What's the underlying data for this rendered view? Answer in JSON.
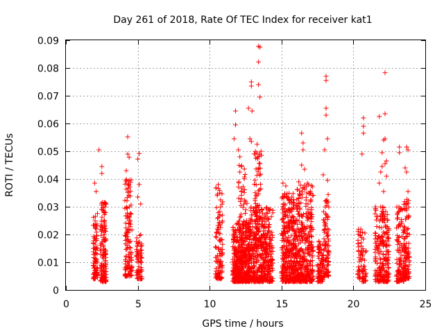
{
  "chart_data": {
    "type": "scatter",
    "title": "Day 261 of 2018, Rate Of TEC Index for receiver kat1",
    "xlabel": "GPS time / hours",
    "ylabel": "ROTI / TECUs",
    "xlim": [
      0,
      25
    ],
    "ylim": [
      0,
      0.09
    ],
    "x_ticks": [
      "0",
      "5",
      "10",
      "15",
      "20",
      "25"
    ],
    "y_ticks": [
      "0",
      "0.01",
      "0.02",
      "0.03",
      "0.04",
      "0.05",
      "0.06",
      "0.07",
      "0.08",
      "0.09"
    ],
    "grid": true,
    "marker": "plus",
    "color": "#ff0000",
    "clusters": [
      {
        "x_range": [
          1.9,
          2.2
        ],
        "y_range": [
          0.004,
          0.028
        ],
        "n": 90
      },
      {
        "x_range": [
          2.4,
          2.8
        ],
        "y_range": [
          0.003,
          0.032
        ],
        "n": 140
      },
      {
        "x_range": [
          4.1,
          4.6
        ],
        "y_range": [
          0.005,
          0.04
        ],
        "n": 130
      },
      {
        "x_range": [
          4.9,
          5.3
        ],
        "y_range": [
          0.004,
          0.02
        ],
        "n": 70
      },
      {
        "x_range": [
          10.4,
          10.9
        ],
        "y_range": [
          0.004,
          0.037
        ],
        "n": 110
      },
      {
        "x_range": [
          11.6,
          12.8
        ],
        "y_range": [
          0.003,
          0.025
        ],
        "n": 420
      },
      {
        "x_range": [
          12.0,
          12.6
        ],
        "y_range": [
          0.01,
          0.045
        ],
        "n": 90
      },
      {
        "x_range": [
          12.7,
          14.4
        ],
        "y_range": [
          0.003,
          0.03
        ],
        "n": 480
      },
      {
        "x_range": [
          13.1,
          13.6
        ],
        "y_range": [
          0.015,
          0.05
        ],
        "n": 80
      },
      {
        "x_range": [
          15.0,
          16.0
        ],
        "y_range": [
          0.003,
          0.035
        ],
        "n": 360
      },
      {
        "x_range": [
          16.0,
          17.2
        ],
        "y_range": [
          0.003,
          0.038
        ],
        "n": 380
      },
      {
        "x_range": [
          17.5,
          17.9
        ],
        "y_range": [
          0.003,
          0.018
        ],
        "n": 80
      },
      {
        "x_range": [
          17.9,
          18.3
        ],
        "y_range": [
          0.005,
          0.035
        ],
        "n": 100
      },
      {
        "x_range": [
          20.3,
          20.7
        ],
        "y_range": [
          0.004,
          0.022
        ],
        "n": 50
      },
      {
        "x_range": [
          20.6,
          20.9
        ],
        "y_range": [
          0.003,
          0.015
        ],
        "n": 30
      },
      {
        "x_range": [
          21.5,
          22.5
        ],
        "y_range": [
          0.003,
          0.03
        ],
        "n": 220
      },
      {
        "x_range": [
          23.0,
          23.5
        ],
        "y_range": [
          0.003,
          0.03
        ],
        "n": 110
      },
      {
        "x_range": [
          23.5,
          23.9
        ],
        "y_range": [
          0.004,
          0.033
        ],
        "n": 110
      }
    ],
    "outliers": [
      {
        "x": 2.3,
        "y": 0.0505
      },
      {
        "x": 2.5,
        "y": 0.0445
      },
      {
        "x": 2.5,
        "y": 0.042
      },
      {
        "x": 2.0,
        "y": 0.0385
      },
      {
        "x": 2.1,
        "y": 0.0355
      },
      {
        "x": 4.3,
        "y": 0.0552
      },
      {
        "x": 4.3,
        "y": 0.049
      },
      {
        "x": 4.4,
        "y": 0.0478
      },
      {
        "x": 4.2,
        "y": 0.043
      },
      {
        "x": 4.4,
        "y": 0.0395
      },
      {
        "x": 5.1,
        "y": 0.0492
      },
      {
        "x": 5.0,
        "y": 0.0472
      },
      {
        "x": 5.1,
        "y": 0.038
      },
      {
        "x": 5.0,
        "y": 0.0335
      },
      {
        "x": 5.2,
        "y": 0.031
      },
      {
        "x": 10.6,
        "y": 0.038
      },
      {
        "x": 10.7,
        "y": 0.035
      },
      {
        "x": 11.8,
        "y": 0.0645
      },
      {
        "x": 11.8,
        "y": 0.0595
      },
      {
        "x": 11.7,
        "y": 0.0545
      },
      {
        "x": 12.0,
        "y": 0.0505
      },
      {
        "x": 12.1,
        "y": 0.048
      },
      {
        "x": 12.2,
        "y": 0.0445
      },
      {
        "x": 12.1,
        "y": 0.0425
      },
      {
        "x": 12.7,
        "y": 0.0655
      },
      {
        "x": 12.8,
        "y": 0.0545
      },
      {
        "x": 12.9,
        "y": 0.0535
      },
      {
        "x": 12.9,
        "y": 0.0735
      },
      {
        "x": 12.9,
        "y": 0.075
      },
      {
        "x": 12.95,
        "y": 0.0645
      },
      {
        "x": 13.1,
        "y": 0.049
      },
      {
        "x": 13.2,
        "y": 0.0475
      },
      {
        "x": 13.3,
        "y": 0.0525
      },
      {
        "x": 13.4,
        "y": 0.0878
      },
      {
        "x": 13.5,
        "y": 0.0875
      },
      {
        "x": 13.4,
        "y": 0.0822
      },
      {
        "x": 13.4,
        "y": 0.074
      },
      {
        "x": 13.5,
        "y": 0.0695
      },
      {
        "x": 13.6,
        "y": 0.0485
      },
      {
        "x": 13.5,
        "y": 0.0455
      },
      {
        "x": 15.1,
        "y": 0.0385
      },
      {
        "x": 15.3,
        "y": 0.0375
      },
      {
        "x": 16.4,
        "y": 0.0565
      },
      {
        "x": 16.5,
        "y": 0.053
      },
      {
        "x": 16.5,
        "y": 0.0505
      },
      {
        "x": 16.4,
        "y": 0.045
      },
      {
        "x": 16.6,
        "y": 0.0435
      },
      {
        "x": 16.2,
        "y": 0.039
      },
      {
        "x": 16.8,
        "y": 0.0385
      },
      {
        "x": 18.1,
        "y": 0.077
      },
      {
        "x": 18.1,
        "y": 0.0755
      },
      {
        "x": 18.1,
        "y": 0.0655
      },
      {
        "x": 18.1,
        "y": 0.063
      },
      {
        "x": 18.2,
        "y": 0.0545
      },
      {
        "x": 18.0,
        "y": 0.0505
      },
      {
        "x": 17.9,
        "y": 0.0415
      },
      {
        "x": 18.2,
        "y": 0.0395
      },
      {
        "x": 20.7,
        "y": 0.062
      },
      {
        "x": 20.7,
        "y": 0.059
      },
      {
        "x": 20.7,
        "y": 0.0565
      },
      {
        "x": 20.6,
        "y": 0.049
      },
      {
        "x": 20.8,
        "y": 0.0205
      },
      {
        "x": 21.8,
        "y": 0.0625
      },
      {
        "x": 22.2,
        "y": 0.0783
      },
      {
        "x": 22.2,
        "y": 0.0635
      },
      {
        "x": 22.1,
        "y": 0.054
      },
      {
        "x": 22.2,
        "y": 0.0545
      },
      {
        "x": 22.0,
        "y": 0.0495
      },
      {
        "x": 22.3,
        "y": 0.0465
      },
      {
        "x": 22.2,
        "y": 0.0455
      },
      {
        "x": 22.0,
        "y": 0.0445
      },
      {
        "x": 21.9,
        "y": 0.0425
      },
      {
        "x": 22.3,
        "y": 0.041
      },
      {
        "x": 21.8,
        "y": 0.0385
      },
      {
        "x": 22.1,
        "y": 0.0355
      },
      {
        "x": 23.2,
        "y": 0.0515
      },
      {
        "x": 23.2,
        "y": 0.0495
      },
      {
        "x": 23.7,
        "y": 0.0515
      },
      {
        "x": 23.8,
        "y": 0.0505
      },
      {
        "x": 23.6,
        "y": 0.044
      },
      {
        "x": 23.7,
        "y": 0.0425
      },
      {
        "x": 23.8,
        "y": 0.0355
      }
    ]
  }
}
